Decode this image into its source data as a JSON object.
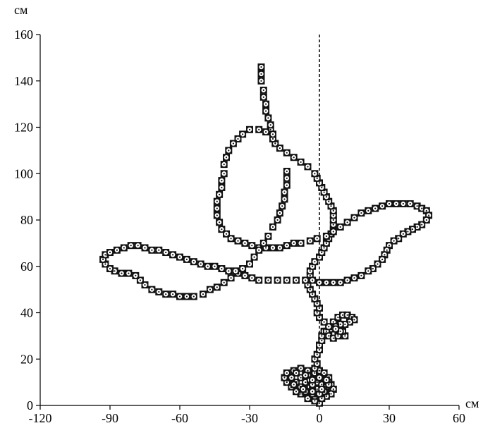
{
  "chart_data": {
    "type": "scatter",
    "title": "",
    "xlabel": "см",
    "ylabel": "см",
    "xlim": [
      -120,
      60
    ],
    "ylim": [
      0,
      160
    ],
    "xticks": [
      -120,
      -90,
      -60,
      -30,
      0,
      30,
      60
    ],
    "yticks": [
      0,
      20,
      40,
      60,
      80,
      100,
      120,
      140,
      160
    ],
    "grid": false,
    "legend": "none",
    "reference_line": {
      "x": 0,
      "style": "dashed"
    },
    "marker_style": {
      "outer_color": "#111111",
      "inner_color": "#ffffff",
      "center_color": "#111111"
    },
    "series": [
      {
        "values": [
          [
            0,
            1
          ],
          [
            -2,
            2
          ],
          [
            -5,
            3
          ],
          [
            -8,
            5
          ],
          [
            -10,
            6
          ],
          [
            -12,
            8
          ],
          [
            -14,
            10
          ],
          [
            -15,
            12
          ],
          [
            -14,
            14
          ],
          [
            -11,
            15
          ],
          [
            -8,
            16
          ],
          [
            -5,
            15
          ],
          [
            -3,
            13
          ],
          [
            0,
            12
          ],
          [
            3,
            11
          ],
          [
            5,
            9
          ],
          [
            6,
            7
          ],
          [
            5,
            5
          ],
          [
            3,
            4
          ],
          [
            1,
            3
          ],
          [
            -2,
            4
          ],
          [
            -5,
            6
          ],
          [
            -8,
            8
          ],
          [
            -10,
            10
          ],
          [
            -8,
            12
          ],
          [
            -5,
            13
          ],
          [
            -2,
            14
          ],
          [
            0,
            15
          ],
          [
            2,
            14
          ],
          [
            4,
            12
          ],
          [
            4,
            10
          ],
          [
            2,
            8
          ],
          [
            -1,
            7
          ],
          [
            -4,
            8
          ],
          [
            -6,
            10
          ],
          [
            -4,
            11
          ],
          [
            -1,
            10
          ],
          [
            1,
            9
          ],
          [
            3,
            8
          ],
          [
            2,
            6
          ],
          [
            0,
            5
          ],
          [
            -3,
            5
          ],
          [
            -6,
            6
          ],
          [
            -3,
            9
          ],
          [
            -6,
            13
          ],
          [
            -10,
            14
          ],
          [
            -12,
            12
          ],
          [
            -11,
            9
          ],
          [
            -7,
            7
          ],
          [
            -3,
            6
          ],
          [
            1,
            7
          ],
          [
            4,
            9
          ],
          [
            3,
            11
          ],
          [
            0,
            12
          ],
          [
            -3,
            11
          ],
          [
            -2,
            16
          ],
          [
            -1,
            18
          ],
          [
            -2,
            20
          ],
          [
            -1,
            22
          ],
          [
            0,
            24
          ],
          [
            0,
            26
          ],
          [
            1,
            28
          ],
          [
            1,
            30
          ],
          [
            2,
            32
          ],
          [
            4,
            33
          ],
          [
            6,
            34
          ],
          [
            8,
            33
          ],
          [
            10,
            31
          ],
          [
            11,
            30
          ],
          [
            10,
            32
          ],
          [
            8,
            34
          ],
          [
            6,
            36
          ],
          [
            8,
            38
          ],
          [
            10,
            39
          ],
          [
            12,
            39
          ],
          [
            14,
            38
          ],
          [
            15,
            37
          ],
          [
            13,
            36
          ],
          [
            11,
            35
          ],
          [
            9,
            35
          ],
          [
            7,
            34
          ],
          [
            5,
            33
          ],
          [
            3,
            32
          ],
          [
            4,
            30
          ],
          [
            6,
            29
          ],
          [
            8,
            30
          ],
          [
            9,
            32
          ],
          [
            7,
            33
          ],
          [
            4,
            34
          ],
          [
            2,
            36
          ],
          [
            0,
            38
          ],
          [
            -1,
            40
          ],
          [
            0,
            42
          ],
          [
            -1,
            44
          ],
          [
            -2,
            46
          ],
          [
            -3,
            48
          ],
          [
            -4,
            50
          ],
          [
            -5,
            52
          ],
          [
            -5,
            54
          ],
          [
            -4,
            56
          ],
          [
            -4,
            58
          ],
          [
            -3,
            60
          ],
          [
            -2,
            62
          ],
          [
            0,
            64
          ],
          [
            1,
            66
          ],
          [
            2,
            68
          ],
          [
            3,
            70
          ],
          [
            4,
            72
          ],
          [
            5,
            74
          ],
          [
            6,
            76
          ],
          [
            6,
            78
          ],
          [
            6,
            80
          ],
          [
            6,
            82
          ],
          [
            6,
            84
          ],
          [
            5,
            86
          ],
          [
            4,
            88
          ],
          [
            3,
            90
          ],
          [
            2,
            92
          ],
          [
            1,
            94
          ],
          [
            0,
            96
          ],
          [
            -1,
            98
          ],
          [
            -2,
            100
          ],
          [
            -5,
            103
          ],
          [
            -8,
            105
          ],
          [
            -11,
            107
          ],
          [
            -14,
            109
          ],
          [
            -17,
            111
          ],
          [
            -19,
            113
          ],
          [
            -20,
            115
          ],
          [
            -20,
            117
          ],
          [
            -21,
            119
          ],
          [
            -21,
            121
          ],
          [
            -22,
            124
          ],
          [
            -23,
            127
          ],
          [
            -23,
            130
          ],
          [
            -24,
            133
          ],
          [
            -24,
            136
          ],
          [
            -25,
            140
          ],
          [
            -25,
            143
          ],
          [
            -25,
            146
          ]
        ]
      },
      {
        "values": [
          [
            -20,
            117
          ],
          [
            -23,
            118
          ],
          [
            -26,
            119
          ],
          [
            -30,
            119
          ],
          [
            -33,
            117
          ],
          [
            -35,
            115
          ],
          [
            -37,
            113
          ],
          [
            -39,
            110
          ],
          [
            -40,
            107
          ],
          [
            -41,
            104
          ],
          [
            -41,
            100
          ],
          [
            -42,
            97
          ],
          [
            -42,
            94
          ],
          [
            -43,
            91
          ],
          [
            -44,
            88
          ],
          [
            -44,
            85
          ],
          [
            -44,
            82
          ],
          [
            -43,
            79
          ],
          [
            -42,
            76
          ],
          [
            -40,
            74
          ],
          [
            -38,
            72
          ],
          [
            -35,
            71
          ],
          [
            -32,
            70
          ],
          [
            -29,
            69
          ],
          [
            -26,
            68
          ],
          [
            -23,
            68
          ],
          [
            -20,
            68
          ],
          [
            -17,
            68
          ],
          [
            -14,
            69
          ],
          [
            -11,
            70
          ],
          [
            -8,
            70
          ],
          [
            -4,
            71
          ],
          [
            -1,
            72
          ],
          [
            3,
            73
          ],
          [
            6,
            75
          ],
          [
            9,
            77
          ],
          [
            12,
            79
          ],
          [
            15,
            81
          ],
          [
            18,
            83
          ],
          [
            21,
            84
          ],
          [
            24,
            85
          ],
          [
            27,
            86
          ],
          [
            30,
            87
          ],
          [
            33,
            87
          ],
          [
            36,
            87
          ],
          [
            39,
            87
          ],
          [
            42,
            86
          ],
          [
            44,
            85
          ],
          [
            46,
            84
          ],
          [
            47,
            82
          ],
          [
            46,
            80
          ],
          [
            44,
            78
          ],
          [
            42,
            77
          ],
          [
            40,
            76
          ],
          [
            38,
            75
          ],
          [
            36,
            74
          ],
          [
            34,
            72
          ],
          [
            32,
            71
          ],
          [
            30,
            69
          ],
          [
            29,
            67
          ],
          [
            28,
            65
          ],
          [
            27,
            63
          ],
          [
            25,
            61
          ],
          [
            23,
            59
          ],
          [
            21,
            58
          ],
          [
            18,
            56
          ],
          [
            15,
            55
          ],
          [
            12,
            54
          ],
          [
            9,
            53
          ],
          [
            6,
            53
          ],
          [
            3,
            53
          ],
          [
            0,
            53
          ],
          [
            -3,
            54
          ],
          [
            -6,
            54
          ],
          [
            -10,
            54
          ],
          [
            -14,
            54
          ],
          [
            -18,
            54
          ],
          [
            -22,
            54
          ],
          [
            -26,
            54
          ],
          [
            -29,
            55
          ],
          [
            -32,
            56
          ],
          [
            -35,
            57
          ],
          [
            -38,
            55
          ],
          [
            -41,
            53
          ],
          [
            -44,
            51
          ],
          [
            -47,
            50
          ],
          [
            -50,
            48
          ],
          [
            -54,
            47
          ],
          [
            -57,
            47
          ],
          [
            -60,
            47
          ],
          [
            -63,
            48
          ],
          [
            -66,
            48
          ],
          [
            -69,
            49
          ],
          [
            -72,
            50
          ],
          [
            -75,
            52
          ],
          [
            -77,
            54
          ],
          [
            -79,
            56
          ],
          [
            -82,
            57
          ],
          [
            -85,
            57
          ],
          [
            -88,
            58
          ],
          [
            -90,
            59
          ],
          [
            -92,
            61
          ],
          [
            -93,
            63
          ],
          [
            -92,
            65
          ],
          [
            -90,
            66
          ],
          [
            -87,
            67
          ],
          [
            -84,
            68
          ],
          [
            -81,
            69
          ],
          [
            -78,
            69
          ],
          [
            -75,
            68
          ],
          [
            -72,
            67
          ],
          [
            -69,
            67
          ],
          [
            -66,
            66
          ],
          [
            -63,
            65
          ],
          [
            -60,
            64
          ],
          [
            -57,
            63
          ],
          [
            -54,
            62
          ],
          [
            -51,
            61
          ],
          [
            -48,
            60
          ],
          [
            -45,
            60
          ],
          [
            -42,
            59
          ],
          [
            -39,
            58
          ],
          [
            -36,
            58
          ],
          [
            -33,
            59
          ],
          [
            -30,
            61
          ],
          [
            -28,
            64
          ],
          [
            -26,
            67
          ],
          [
            -24,
            70
          ],
          [
            -22,
            73
          ],
          [
            -20,
            77
          ],
          [
            -18,
            80
          ],
          [
            -17,
            83
          ],
          [
            -16,
            86
          ],
          [
            -15,
            89
          ],
          [
            -15,
            92
          ],
          [
            -14,
            95
          ],
          [
            -14,
            98
          ],
          [
            -14,
            101
          ]
        ]
      }
    ]
  }
}
